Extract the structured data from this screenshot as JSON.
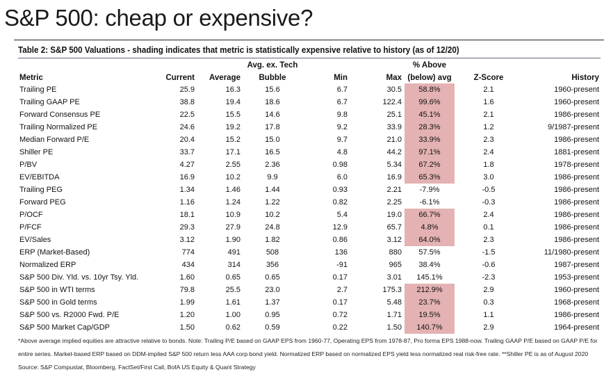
{
  "title": "S&P 500: cheap or expensive?",
  "caption": "Table 2: S&P 500 Valuations - shading indicates that metric is statistically expensive relative to history (as of 12/20)",
  "shade_color": "#e4b2b2",
  "headers": {
    "metric": "Metric",
    "current": "Current",
    "average": "Average",
    "bubble_top": "Avg. ex. Tech",
    "bubble": "Bubble",
    "min": "Min",
    "max": "Max",
    "pct_top": "% Above",
    "pct": "(below) avg",
    "z": "Z-Score",
    "history": "History"
  },
  "rows": [
    [
      "Trailing PE",
      "25.9",
      "16.3",
      "15.6",
      "6.7",
      "30.5",
      "58.8%",
      "2.1",
      "1960-present",
      true
    ],
    [
      "Trailing GAAP PE",
      "38.8",
      "19.4",
      "18.6",
      "6.7",
      "122.4",
      "99.6%",
      "1.6",
      "1960-present",
      true
    ],
    [
      "Forward Consensus PE",
      "22.5",
      "15.5",
      "14.6",
      "9.8",
      "25.1",
      "45.1%",
      "2.1",
      "1986-present",
      true
    ],
    [
      "Trailing Normalized PE",
      "24.6",
      "19.2",
      "17.8",
      "9.2",
      "33.9",
      "28.3%",
      "1.2",
      "9/1987-present",
      true
    ],
    [
      "Median Forward P/E",
      "20.4",
      "15.2",
      "15.0",
      "9.7",
      "21.0",
      "33.9%",
      "2.3",
      "1986-present",
      true
    ],
    [
      "Shiller PE",
      "33.7",
      "17.1",
      "16.5",
      "4.8",
      "44.2",
      "97.1%",
      "2.4",
      "1881-present",
      true
    ],
    [
      "P/BV",
      "4.27",
      "2.55",
      "2.36",
      "0.98",
      "5.34",
      "67.2%",
      "1.8",
      "1978-present",
      true
    ],
    [
      "EV/EBITDA",
      "16.9",
      "10.2",
      "9.9",
      "6.0",
      "16.9",
      "65.3%",
      "3.0",
      "1986-present",
      true
    ],
    [
      "Trailing PEG",
      "1.34",
      "1.46",
      "1.44",
      "0.93",
      "2.21",
      "-7.9%",
      "-0.5",
      "1986-present",
      false
    ],
    [
      "Forward PEG",
      "1.16",
      "1.24",
      "1.22",
      "0.82",
      "2.25",
      "-6.1%",
      "-0.3",
      "1986-present",
      false
    ],
    [
      "P/OCF",
      "18.1",
      "10.9",
      "10.2",
      "5.4",
      "19.0",
      "66.7%",
      "2.4",
      "1986-present",
      true
    ],
    [
      "P/FCF",
      "29.3",
      "27.9",
      "24.8",
      "12.9",
      "65.7",
      "4.8%",
      "0.1",
      "1986-present",
      true
    ],
    [
      "EV/Sales",
      "3.12",
      "1.90",
      "1.82",
      "0.86",
      "3.12",
      "64.0%",
      "2.3",
      "1986-present",
      true
    ],
    [
      "ERP (Market-Based)",
      "774",
      "491",
      "508",
      "136",
      "880",
      "57.5%",
      "-1.5",
      "11/1980-present",
      false
    ],
    [
      "Normalized ERP",
      "434",
      "314",
      "356",
      "-91",
      "965",
      "38.4%",
      "-0.6",
      "1987-present",
      false
    ],
    [
      "S&P 500 Div. Yld. vs. 10yr Tsy. Yld.",
      "1.60",
      "0.65",
      "0.65",
      "0.17",
      "3.01",
      "145.1%",
      "-2.3",
      "1953-present",
      false
    ],
    [
      "S&P 500 in WTI terms",
      "79.8",
      "25.5",
      "23.0",
      "2.7",
      "175.3",
      "212.9%",
      "2.9",
      "1960-present",
      true
    ],
    [
      "S&P 500 in Gold terms",
      "1.99",
      "1.61",
      "1.37",
      "0.17",
      "5.48",
      "23.7%",
      "0.3",
      "1968-present",
      true
    ],
    [
      "S&P 500 vs. R2000 Fwd. P/E",
      "1.20",
      "1.00",
      "0.95",
      "0.72",
      "1.71",
      "19.5%",
      "1.1",
      "1986-present",
      true
    ],
    [
      "S&P 500 Market Cap/GDP",
      "1.50",
      "0.62",
      "0.59",
      "0.22",
      "1.50",
      "140.7%",
      "2.9",
      "1964-present",
      true
    ]
  ],
  "notes": [
    "*Above average implied equities are attractive relative to bonds. Note: Trailing P/E based on GAAP EPS from 1960-77, Operating EPS from 1978-87, Pro forma EPS 1988-now. Trailing GAAP P/E based on GAAP P/E for",
    "entire series. Market-based ERP based on DDM-implied S&P 500 return less AAA corp bond yield. Normalized ERP based on normalized EPS yield less normalized real risk-free rate. **Shiller PE is as of August 2020",
    "Source: S&P Compustat, Bloomberg, FactSet/First Call, BofA US Equity & Quant Strategy"
  ]
}
